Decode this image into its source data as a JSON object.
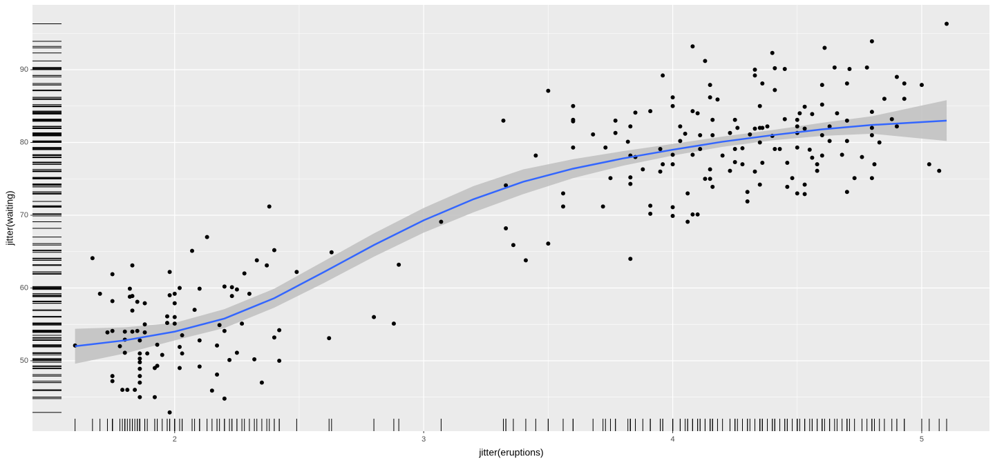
{
  "chart_data": {
    "type": "scatter",
    "xlabel": "jitter(eruptions)",
    "ylabel": "jitter(waiting)",
    "xlim": [
      1.429,
      5.272
    ],
    "ylim": [
      40.33,
      98.91
    ],
    "xticks": [
      2,
      3,
      4,
      5
    ],
    "yticks": [
      50,
      60,
      70,
      80,
      90
    ],
    "xminor": [
      2.5,
      3.5,
      4.5
    ],
    "yminor": [
      45,
      55,
      65,
      75,
      85,
      95
    ],
    "grid": true,
    "rug": true,
    "color": "#000000",
    "x": [
      1.6,
      1.67,
      1.7,
      1.73,
      1.75,
      1.75,
      1.75,
      1.75,
      1.75,
      1.78,
      1.79,
      1.8,
      1.8,
      1.8,
      1.81,
      1.82,
      1.82,
      1.83,
      1.83,
      1.83,
      1.83,
      1.84,
      1.85,
      1.85,
      1.86,
      1.86,
      1.86,
      1.86,
      1.86,
      1.86,
      1.86,
      1.86,
      1.88,
      1.88,
      1.88,
      1.89,
      1.92,
      1.92,
      1.93,
      1.93,
      1.95,
      1.97,
      1.97,
      1.98,
      1.98,
      1.98,
      2.0,
      2.0,
      2.0,
      2.0,
      2.02,
      2.02,
      2.02,
      2.03,
      2.03,
      2.07,
      2.08,
      2.1,
      2.1,
      2.1,
      2.13,
      2.15,
      2.17,
      2.17,
      2.18,
      2.2,
      2.2,
      2.2,
      2.22,
      2.23,
      2.23,
      2.25,
      2.25,
      2.27,
      2.28,
      2.3,
      2.32,
      2.33,
      2.35,
      2.37,
      2.38,
      2.4,
      2.4,
      2.42,
      2.42,
      2.49,
      2.62,
      2.63,
      2.8,
      2.88,
      2.9,
      3.07,
      3.32,
      3.33,
      3.33,
      3.36,
      3.41,
      3.45,
      3.5,
      3.5,
      3.56,
      3.56,
      3.6,
      3.6,
      3.6,
      3.6,
      3.68,
      3.72,
      3.73,
      3.75,
      3.77,
      3.77,
      3.82,
      3.83,
      3.83,
      3.83,
      3.83,
      3.83,
      3.85,
      3.85,
      3.88,
      3.91,
      3.91,
      3.91,
      3.95,
      3.95,
      3.96,
      3.96,
      4.0,
      4.0,
      4.0,
      4.0,
      4.0,
      4.0,
      4.03,
      4.03,
      4.05,
      4.06,
      4.06,
      4.08,
      4.08,
      4.08,
      4.08,
      4.1,
      4.1,
      4.11,
      4.11,
      4.13,
      4.13,
      4.15,
      4.15,
      4.15,
      4.15,
      4.16,
      4.16,
      4.16,
      4.18,
      4.2,
      4.23,
      4.23,
      4.25,
      4.25,
      4.25,
      4.26,
      4.28,
      4.28,
      4.3,
      4.3,
      4.31,
      4.33,
      4.33,
      4.33,
      4.33,
      4.35,
      4.35,
      4.35,
      4.35,
      4.36,
      4.36,
      4.36,
      4.38,
      4.4,
      4.4,
      4.41,
      4.41,
      4.41,
      4.43,
      4.45,
      4.45,
      4.46,
      4.46,
      4.48,
      4.5,
      4.5,
      4.5,
      4.5,
      4.5,
      4.51,
      4.53,
      4.53,
      4.53,
      4.53,
      4.55,
      4.56,
      4.56,
      4.58,
      4.58,
      4.6,
      4.6,
      4.6,
      4.6,
      4.61,
      4.63,
      4.63,
      4.65,
      4.66,
      4.68,
      4.7,
      4.7,
      4.7,
      4.7,
      4.71,
      4.73,
      4.76,
      4.78,
      4.8,
      4.8,
      4.8,
      4.8,
      4.8,
      4.81,
      4.83,
      4.85,
      4.88,
      4.9,
      4.9,
      4.93,
      4.93,
      5.0,
      5.03,
      5.07,
      5.1
    ],
    "values": [
      52.1,
      64.1,
      59.2,
      53.9,
      61.9,
      58.2,
      54.1,
      47.9,
      47.2,
      52.0,
      46.0,
      54.0,
      51.1,
      52.9,
      46.0,
      59.9,
      58.8,
      63.1,
      58.9,
      56.9,
      54.0,
      46.0,
      54.1,
      58.1,
      52.8,
      51.0,
      50.3,
      49.8,
      48.9,
      47.9,
      47.0,
      45.0,
      55.0,
      57.9,
      53.9,
      51.0,
      45.0,
      49.0,
      52.2,
      49.3,
      50.8,
      56.1,
      55.2,
      62.2,
      59.0,
      42.9,
      59.2,
      57.9,
      56.0,
      55.1,
      60.0,
      49.0,
      51.9,
      53.5,
      51.0,
      65.1,
      57.0,
      59.9,
      52.8,
      49.2,
      67.0,
      45.9,
      52.1,
      48.1,
      54.9,
      44.8,
      54.1,
      60.2,
      50.1,
      60.1,
      58.9,
      59.8,
      51.1,
      55.1,
      62.0,
      59.2,
      50.2,
      63.8,
      47.0,
      63.1,
      71.2,
      53.2,
      65.2,
      50.0,
      54.2,
      62.2,
      53.1,
      64.9,
      56.0,
      55.1,
      63.2,
      69.1,
      83.0,
      74.1,
      68.2,
      65.9,
      63.8,
      78.2,
      87.1,
      66.1,
      73.0,
      71.2,
      85.0,
      83.1,
      82.9,
      79.3,
      81.1,
      71.2,
      79.3,
      75.1,
      83.0,
      81.3,
      80.1,
      82.2,
      78.2,
      75.2,
      74.3,
      64.0,
      78.0,
      84.1,
      76.3,
      84.3,
      71.3,
      70.2,
      76.0,
      79.1,
      89.2,
      77.0,
      86.2,
      85.0,
      78.3,
      77.0,
      71.1,
      69.9,
      80.2,
      82.2,
      81.2,
      73.0,
      69.1,
      93.2,
      84.3,
      78.3,
      70.1,
      84.0,
      70.1,
      81.0,
      79.1,
      91.2,
      75.0,
      87.9,
      86.2,
      76.3,
      75.0,
      83.1,
      81.0,
      73.9,
      85.9,
      78.2,
      81.3,
      76.1,
      83.1,
      79.1,
      77.3,
      82.0,
      77.0,
      79.2,
      73.2,
      71.9,
      81.1,
      90.0,
      89.2,
      81.9,
      76.0,
      85.0,
      82.0,
      80.0,
      74.2,
      88.1,
      82.0,
      77.2,
      82.2,
      92.3,
      80.9,
      87.2,
      90.2,
      79.1,
      79.1,
      90.1,
      83.2,
      77.2,
      73.9,
      75.1,
      73.0,
      83.1,
      82.2,
      81.3,
      79.3,
      84.0,
      84.9,
      81.9,
      74.2,
      72.9,
      79.0,
      77.9,
      83.9,
      77.0,
      76.1,
      85.2,
      87.9,
      81.0,
      78.2,
      93.0,
      82.2,
      80.2,
      90.3,
      84.0,
      78.3,
      88.1,
      83.0,
      80.2,
      73.2,
      90.1,
      75.1,
      78.0,
      90.3,
      93.9,
      84.2,
      82.0,
      81.0,
      75.1,
      77.0,
      80.0,
      86.0,
      83.2,
      89.0,
      82.2,
      88.1,
      86.0,
      87.9,
      77.0,
      76.1,
      96.3
    ],
    "smooth": {
      "color": "#3366ff",
      "band_color": "#bdbdbd",
      "x": [
        1.6,
        1.8,
        2.0,
        2.2,
        2.4,
        2.6,
        2.8,
        3.0,
        3.2,
        3.4,
        3.6,
        3.8,
        4.0,
        4.2,
        4.4,
        4.6,
        4.8,
        5.1
      ],
      "y": [
        52.0,
        52.8,
        54.0,
        55.8,
        58.6,
        62.2,
        65.9,
        69.3,
        72.2,
        74.6,
        76.4,
        77.8,
        79.0,
        80.1,
        81.0,
        81.8,
        82.4,
        83.0
      ],
      "ymin": [
        49.6,
        51.0,
        52.8,
        54.5,
        57.3,
        60.7,
        64.3,
        67.6,
        70.4,
        72.9,
        75.1,
        76.8,
        78.2,
        79.4,
        80.3,
        80.9,
        81.2,
        80.2
      ],
      "ymax": [
        54.4,
        54.6,
        55.2,
        57.1,
        59.9,
        63.7,
        67.5,
        71.0,
        74.0,
        76.3,
        77.7,
        78.8,
        79.8,
        80.8,
        81.7,
        82.7,
        83.6,
        85.8
      ]
    }
  }
}
